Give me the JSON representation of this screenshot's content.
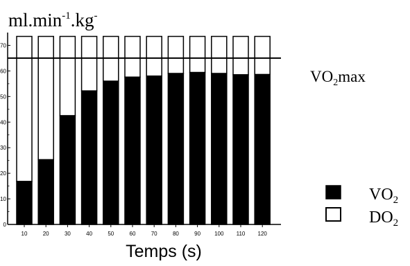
{
  "chart_data": {
    "type": "bar",
    "stacked": true,
    "ylabel_base": "ml.min",
    "ylabel_sup1": "-1",
    "ylabel_mid": ".kg",
    "ylabel_sup2": "-",
    "xlabel": "Temps (s)",
    "ylim": [
      0,
      75
    ],
    "yticks": [
      "0",
      "10",
      "20",
      "30",
      "40",
      "50",
      "60",
      "70"
    ],
    "categories": [
      "10",
      "20",
      "30",
      "40",
      "50",
      "60",
      "70",
      "80",
      "90",
      "100",
      "110",
      "120"
    ],
    "series": [
      {
        "name_main": "VO",
        "name_sub": "2",
        "fill": "#000000",
        "values": [
          16.8,
          25.3,
          42.5,
          52.2,
          56,
          57.6,
          58,
          59,
          59.4,
          59,
          58.5,
          58.6
        ]
      },
      {
        "name_main": "DO",
        "name_sub": "2",
        "fill": "#ffffff",
        "values": [
          56.7,
          48.2,
          31,
          21.3,
          17.5,
          15.9,
          15.5,
          14.5,
          14.1,
          14.5,
          15,
          14.9
        ]
      }
    ],
    "reference_line": {
      "value": 65,
      "label_main": "VO",
      "label_sub": "2",
      "label_tail": "max"
    },
    "legend_position": "bottom-right",
    "grid": false
  }
}
